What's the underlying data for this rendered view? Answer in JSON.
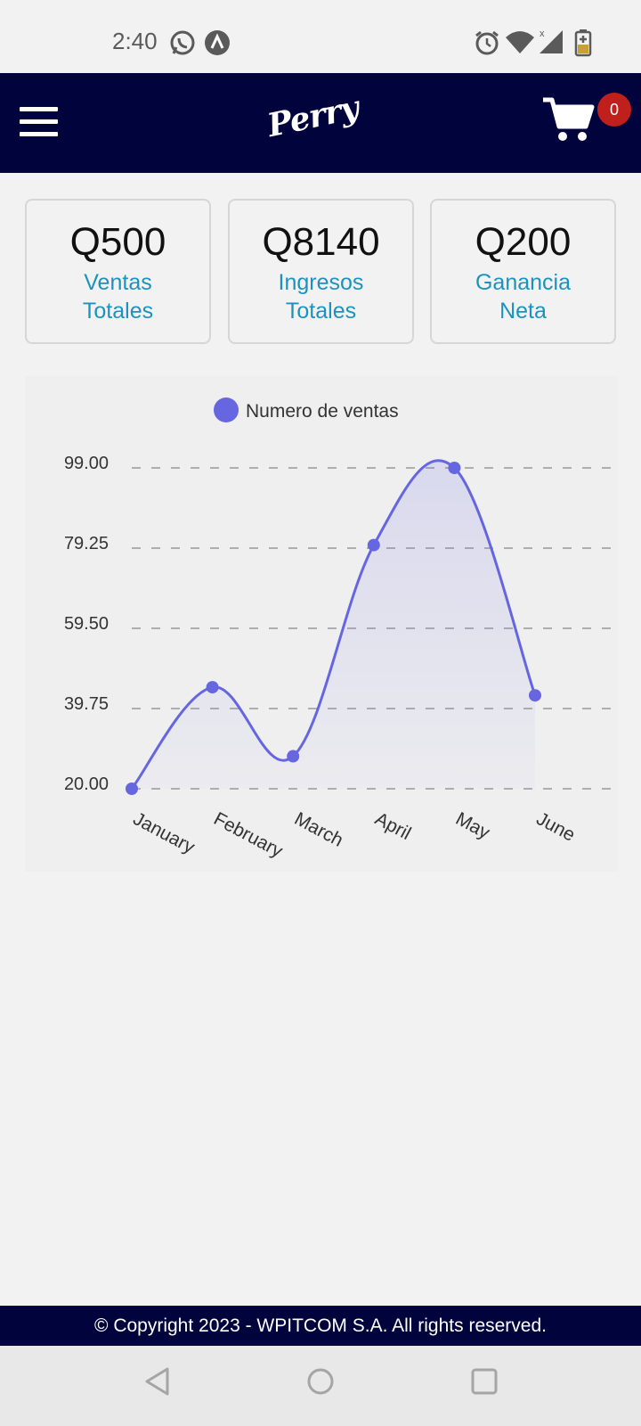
{
  "status_bar": {
    "time": "2:40",
    "icons": [
      "whatsapp-icon",
      "app-icon",
      "alarm-icon",
      "wifi-icon",
      "signal-icon",
      "battery-icon"
    ]
  },
  "header": {
    "logo_text": "Perry",
    "cart_count": "0",
    "colors": {
      "background": "#01033d",
      "badge": "#c0201b"
    }
  },
  "stats": [
    {
      "value": "Q500",
      "label_line1": "Ventas",
      "label_line2": "Totales"
    },
    {
      "value": "Q8140",
      "label_line1": "Ingresos",
      "label_line2": "Totales"
    },
    {
      "value": "Q200",
      "label_line1": "Ganancia",
      "label_line2": "Neta"
    }
  ],
  "chart_data": {
    "type": "area",
    "categories": [
      "January",
      "February",
      "March",
      "April",
      "May",
      "June"
    ],
    "series": [
      {
        "name": "Numero de ventas",
        "values": [
          20,
          45,
          28,
          80,
          99,
          43
        ],
        "color": "#6566e0"
      }
    ],
    "y_ticks": [
      "99.00",
      "79.25",
      "59.50",
      "39.75",
      "20.00"
    ],
    "ylim": [
      20,
      99
    ],
    "grid": "horizontal dashed",
    "legend": "top-center"
  },
  "footer": {
    "text": "© Copyright 2023 - WPITCOM S.A. All rights reserved."
  },
  "nav": {
    "icons": [
      "back-icon",
      "home-icon",
      "recents-icon"
    ]
  }
}
